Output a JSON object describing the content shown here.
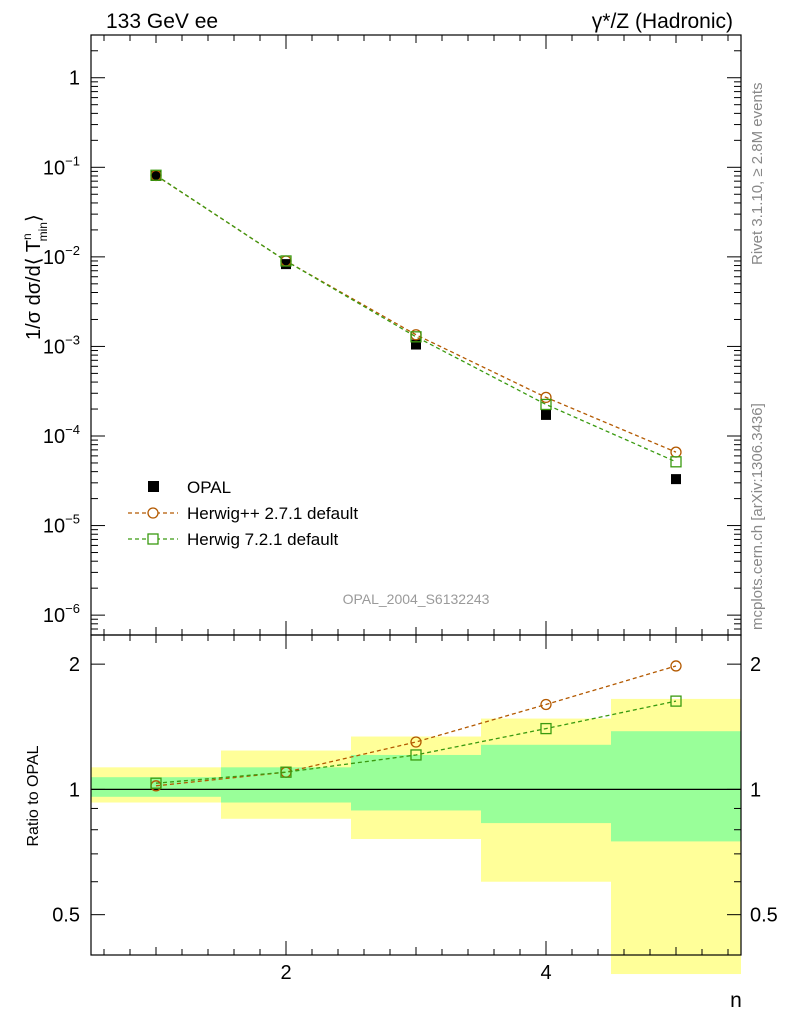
{
  "header": {
    "left": "133 GeV ee",
    "right": "γ*/Z (Hadronic)"
  },
  "side_labels": {
    "rivet": "Rivet 3.1.10, ≥ 2.8M events",
    "mcplots": "mcplots.cern.ch [arXiv:1306.3436]"
  },
  "watermark": "OPAL_2004_S6132243",
  "colors": {
    "data": "#000000",
    "herwigpp": "#b35900",
    "herwig7": "#3a9a10",
    "band_inner": "#99ff99",
    "band_outer": "#ffff99"
  },
  "chart_data": [
    {
      "type": "scatter",
      "panel": "main",
      "ylabel": "1/σ dσ/d⟨ T",
      "ylabel_sup": "n",
      "ylabel_sub": "min",
      "ylabel_tail": "⟩",
      "yscale": "log",
      "ylim": [
        6e-07,
        3
      ],
      "xlim": [
        0.5,
        5.5
      ],
      "y_tick_labels": [
        {
          "value": 1,
          "mant": "1",
          "exp": ""
        },
        {
          "value": 0.1,
          "mant": "10",
          "exp": "−1"
        },
        {
          "value": 0.01,
          "mant": "10",
          "exp": "−2"
        },
        {
          "value": 0.001,
          "mant": "10",
          "exp": "−3"
        },
        {
          "value": 0.0001,
          "mant": "10",
          "exp": "−4"
        },
        {
          "value": 1e-05,
          "mant": "10",
          "exp": "−5"
        },
        {
          "value": 1e-06,
          "mant": "10",
          "exp": "−6"
        }
      ],
      "x": [
        1,
        2,
        3,
        4,
        5
      ],
      "series": [
        {
          "name": "OPAL",
          "style": "filled-square",
          "values": [
            0.08,
            0.0083,
            0.00105,
            0.000172,
            3.3e-05
          ]
        },
        {
          "name": "Herwig++ 2.7.1 default",
          "style": "open-circle-dashed",
          "values": [
            0.081,
            0.009,
            0.00135,
            0.00027,
            6.6e-05
          ]
        },
        {
          "name": "Herwig 7.2.1 default",
          "style": "open-square-dashed",
          "values": [
            0.0815,
            0.009,
            0.00128,
            0.000225,
            5.15e-05
          ]
        }
      ],
      "legend_position": "lower-left"
    },
    {
      "type": "line",
      "panel": "ratio",
      "ylabel": "Ratio to OPAL",
      "yscale": "log",
      "ylim": [
        0.4,
        2.35
      ],
      "xlim": [
        0.5,
        5.5
      ],
      "xlabel": "n",
      "x_tick_labels": [
        "2",
        "4"
      ],
      "y_tick_labels": [
        "0.5",
        "1",
        "2"
      ],
      "x": [
        1,
        2,
        3,
        4,
        5
      ],
      "band_edges": [
        0.5,
        1.5,
        2.5,
        3.5,
        4.5,
        5.5
      ],
      "band_inner": [
        [
          0.96,
          1.07
        ],
        [
          0.93,
          1.13
        ],
        [
          0.89,
          1.21
        ],
        [
          0.83,
          1.28
        ],
        [
          0.75,
          1.38
        ]
      ],
      "band_outer": [
        [
          0.93,
          1.13
        ],
        [
          0.85,
          1.24
        ],
        [
          0.76,
          1.34
        ],
        [
          0.6,
          1.48
        ],
        [
          0.36,
          1.65
        ]
      ],
      "series": [
        {
          "name": "Herwig++ 2.7.1 default",
          "values": [
            1.02,
            1.1,
            1.3,
            1.6,
            1.98
          ]
        },
        {
          "name": "Herwig 7.2.1 default",
          "values": [
            1.035,
            1.1,
            1.21,
            1.4,
            1.63
          ]
        }
      ]
    }
  ]
}
